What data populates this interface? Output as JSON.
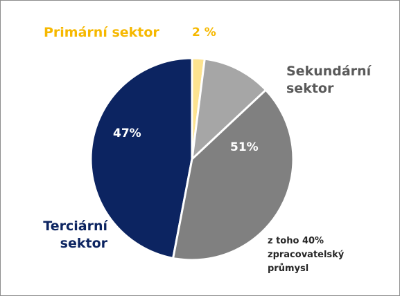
{
  "chart_data": {
    "type": "pie",
    "categories": [
      "Primární sektor",
      "Sekundární sektor",
      "Terciární sektor"
    ],
    "values": [
      2,
      51,
      47
    ],
    "value_labels": [
      "2 %",
      "51%",
      "47%"
    ],
    "colors": [
      "#fde38f",
      "#a6a6a6",
      "#0c2461"
    ],
    "label_colors": [
      "#f6b800",
      "#595959",
      "#0c2461"
    ],
    "subslice": {
      "parent": 1,
      "value": 40,
      "color": "#808080",
      "label_lines": [
        "z toho 40%",
        "zpracovatelský",
        "průmysl"
      ]
    }
  }
}
